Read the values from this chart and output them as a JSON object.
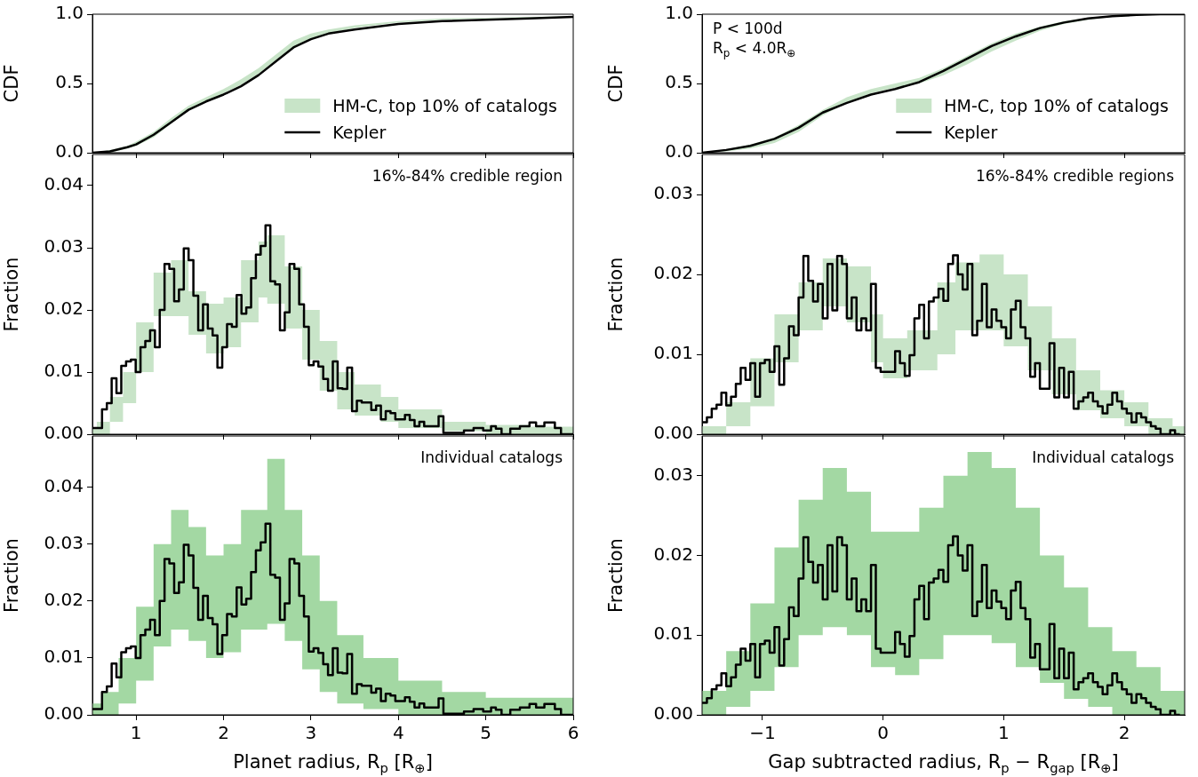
{
  "chart_data": [
    {
      "type": "line",
      "ylabel": "CDF",
      "xlim": [
        0.5,
        6
      ],
      "xticks": [
        {
          "value": 1,
          "label": null
        },
        {
          "value": 2,
          "label": null
        },
        {
          "value": 3,
          "label": null
        },
        {
          "value": 4,
          "label": null
        },
        {
          "value": 5,
          "label": null
        },
        {
          "value": 6,
          "label": null
        }
      ],
      "ylim": [
        0,
        1
      ],
      "yticks": [
        {
          "value": 0,
          "label": "0.0"
        },
        {
          "value": 0.5,
          "label": "0.5"
        },
        {
          "value": 1,
          "label": "1.0"
        }
      ],
      "tick_labels": "y",
      "legend": "bottom right",
      "series": [
        {
          "name": "HM-C, top 10% of catalogs",
          "type": "area",
          "color": "#c8e4c8",
          "x": [
            0.5,
            0.7,
            0.9,
            1.0,
            1.2,
            1.4,
            1.6,
            1.8,
            2.0,
            2.2,
            2.4,
            2.6,
            2.8,
            3.0,
            3.2,
            3.5,
            4.0,
            4.5,
            5.0,
            5.5,
            6.0
          ],
          "values": [
            null,
            null,
            null,
            null,
            null,
            null,
            null,
            null,
            null,
            null,
            null,
            null,
            null,
            null,
            null,
            null,
            null,
            null,
            null,
            null,
            null
          ],
          "lower": [
            0,
            0,
            0.03,
            0.05,
            0.11,
            0.21,
            0.31,
            0.37,
            0.43,
            0.49,
            0.57,
            0.67,
            0.76,
            0.82,
            0.86,
            0.9,
            0.94,
            0.96,
            0.97,
            0.975,
            0.98
          ],
          "upper": [
            0,
            0.02,
            0.05,
            0.08,
            0.15,
            0.25,
            0.34,
            0.4,
            0.46,
            0.53,
            0.61,
            0.71,
            0.81,
            0.86,
            0.89,
            0.92,
            0.95,
            0.97,
            0.975,
            0.98,
            0.985
          ]
        },
        {
          "name": "Kepler",
          "color": "#000000",
          "x": [
            0.5,
            0.7,
            0.9,
            1.0,
            1.2,
            1.4,
            1.6,
            1.8,
            2.0,
            2.2,
            2.4,
            2.6,
            2.8,
            3.0,
            3.2,
            3.5,
            4.0,
            4.5,
            5.0,
            5.5,
            6.0
          ],
          "values": [
            0,
            0.01,
            0.04,
            0.06,
            0.13,
            0.22,
            0.31,
            0.37,
            0.42,
            0.48,
            0.56,
            0.66,
            0.76,
            0.82,
            0.86,
            0.89,
            0.93,
            0.95,
            0.96,
            0.97,
            0.98
          ]
        }
      ]
    },
    {
      "type": "line",
      "ylabel": "CDF",
      "xlim": [
        -1.5,
        2.5
      ],
      "xticks": [
        {
          "value": -1,
          "label": null
        },
        {
          "value": 0,
          "label": null
        },
        {
          "value": 1,
          "label": null
        },
        {
          "value": 2,
          "label": null
        }
      ],
      "ylim": [
        0,
        1
      ],
      "yticks": [
        {
          "value": 0,
          "label": "0.0"
        },
        {
          "value": 0.5,
          "label": "0.5"
        },
        {
          "value": 1,
          "label": "1.0"
        }
      ],
      "tick_labels": "y",
      "legend": "bottom right",
      "annotations": [
        "P < 100d",
        "R$_{p}$ < 4.0R$_{⊕}$"
      ],
      "series": [
        {
          "name": "HM-C, top 10% of catalogs",
          "type": "area",
          "color": "#c8e4c8",
          "x": [
            -1.5,
            -1.3,
            -1.1,
            -0.9,
            -0.7,
            -0.5,
            -0.3,
            -0.1,
            0.1,
            0.3,
            0.5,
            0.7,
            0.9,
            1.1,
            1.3,
            1.5,
            1.7,
            1.9,
            2.1,
            2.3,
            2.5
          ],
          "values": [
            null,
            null,
            null,
            null,
            null,
            null,
            null,
            null,
            null,
            null,
            null,
            null,
            null,
            null,
            null,
            null,
            null,
            null,
            null,
            null,
            null
          ],
          "lower": [
            0,
            0.01,
            0.03,
            0.07,
            0.15,
            0.27,
            0.36,
            0.43,
            0.47,
            0.5,
            0.56,
            0.64,
            0.73,
            0.81,
            0.88,
            0.93,
            0.96,
            0.98,
            0.99,
            1,
            1
          ],
          "upper": [
            0.005,
            0.025,
            0.06,
            0.11,
            0.2,
            0.31,
            0.4,
            0.46,
            0.5,
            0.54,
            0.61,
            0.7,
            0.79,
            0.86,
            0.91,
            0.95,
            0.975,
            0.99,
            1,
            1,
            1
          ]
        },
        {
          "name": "Kepler",
          "color": "#000000",
          "x": [
            -1.5,
            -1.3,
            -1.1,
            -0.9,
            -0.7,
            -0.5,
            -0.3,
            -0.1,
            0.1,
            0.3,
            0.5,
            0.7,
            0.9,
            1.1,
            1.3,
            1.5,
            1.7,
            1.9,
            2.1,
            2.3,
            2.5
          ],
          "values": [
            0,
            0.02,
            0.05,
            0.1,
            0.18,
            0.29,
            0.36,
            0.42,
            0.46,
            0.51,
            0.59,
            0.68,
            0.77,
            0.84,
            0.9,
            0.94,
            0.97,
            0.985,
            0.995,
            1,
            1
          ]
        }
      ]
    },
    {
      "type": "step",
      "ylabel": "Fraction",
      "xlim": [
        0.5,
        6
      ],
      "xticks": [
        {
          "value": 1,
          "label": null
        },
        {
          "value": 2,
          "label": null
        },
        {
          "value": 3,
          "label": null
        },
        {
          "value": 4,
          "label": null
        },
        {
          "value": 5,
          "label": null
        },
        {
          "value": 6,
          "label": null
        }
      ],
      "ylim": [
        0,
        0.045
      ],
      "yticks": [
        {
          "value": 0,
          "label": "0.00"
        },
        {
          "value": 0.01,
          "label": "0.01"
        },
        {
          "value": 0.02,
          "label": "0.02"
        },
        {
          "value": 0.03,
          "label": "0.03"
        },
        {
          "value": 0.04,
          "label": "0.04"
        }
      ],
      "tick_labels": "y",
      "annotations": [
        "16%-84% credible region"
      ],
      "series": [
        {
          "color": "#c8e4c8",
          "x": [
            0.5,
            0.55,
            0.7,
            0.85,
            1.0,
            1.2,
            1.4,
            1.6,
            1.8,
            2.0,
            2.2,
            2.4,
            2.5,
            2.7,
            2.9,
            3.1,
            3.3,
            3.5,
            3.8,
            4.0,
            4.5,
            5.0,
            5.5,
            6.0
          ],
          "values": [
            null,
            null,
            null,
            null,
            null,
            null,
            null,
            null,
            null,
            null,
            null,
            null,
            null,
            null,
            null,
            null,
            null,
            null,
            null,
            null,
            null,
            null,
            null,
            null
          ],
          "lower": [
            0,
            0,
            0.002,
            0.005,
            0.01,
            0.019,
            0.019,
            0.016,
            0.013,
            0.014,
            0.018,
            0.022,
            0.021,
            0.017,
            0.012,
            0.007,
            0.004,
            0.003,
            0.002,
            0.001,
            0.0005,
            0,
            0,
            0
          ],
          "upper": [
            0.001,
            0.002,
            0.006,
            0.01,
            0.018,
            0.026,
            0.028,
            0.023,
            0.021,
            0.022,
            0.028,
            0.031,
            0.032,
            0.027,
            0.02,
            0.015,
            0.01,
            0.008,
            0.006,
            0.004,
            0.002,
            0.0015,
            0.0012,
            0.001
          ]
        },
        {
          "color": "#000000",
          "x": [
            0.5,
            0.61,
            0.665,
            0.72,
            0.775,
            0.83,
            0.885,
            0.94,
            0.995,
            1.05,
            1.105,
            1.16,
            1.215,
            1.27,
            1.325,
            1.38,
            1.435,
            1.49,
            1.545,
            1.6,
            1.655,
            1.71,
            1.765,
            1.82,
            1.875,
            1.93,
            1.985,
            2.04,
            2.095,
            2.15,
            2.205,
            2.26,
            2.315,
            2.37,
            2.425,
            2.48,
            2.535,
            2.59,
            2.645,
            2.7,
            2.755,
            2.81,
            2.865,
            2.92,
            2.975,
            3.03,
            3.085,
            3.14,
            3.195,
            3.25,
            3.305,
            3.36,
            3.415,
            3.47,
            3.525,
            3.58,
            3.69,
            3.745,
            3.8,
            3.855,
            3.91,
            3.965,
            4.075,
            4.13,
            4.185,
            4.24,
            4.295,
            4.35,
            4.46,
            4.515,
            4.75,
            4.86,
            4.97,
            5.06,
            5.115,
            5.18,
            5.28,
            5.335,
            5.39,
            5.5,
            5.575,
            5.67,
            5.79,
            5.86,
            6.0
          ],
          "values": [
            0.001,
            0.004,
            0.005,
            0.009,
            0.0066,
            0.011,
            0.0117,
            0.012,
            0.01,
            0.014,
            0.015,
            0.0167,
            0.014,
            0.02,
            0.0274,
            0.0266,
            0.0214,
            0.0233,
            0.0299,
            0.028,
            0.0223,
            0.0167,
            0.0209,
            0.017,
            0.0159,
            0.0107,
            0.014,
            0.0177,
            0.0173,
            0.0224,
            0.0194,
            0.0204,
            0.0251,
            0.0289,
            0.0303,
            0.0336,
            0.0246,
            0.0241,
            0.0167,
            0.0196,
            0.0274,
            0.0266,
            0.0209,
            0.0173,
            0.0111,
            0.0117,
            0.0109,
            0.0089,
            0.007,
            0.0117,
            0.0074,
            0.0073,
            0.0107,
            0.0037,
            0.0054,
            0.0051,
            0.0039,
            0.0046,
            0.0024,
            0.0037,
            0.0034,
            0.0024,
            0.0031,
            0.0023,
            0.0013,
            0.002,
            0.0013,
            0.0013,
            0.0029,
            0.0002,
            0.0006,
            0.001,
            0.0006,
            0.0013,
            0.0009,
            0,
            0.0009,
            0.0009,
            0.0013,
            0.0019,
            0.0013,
            0.0019,
            0.001,
            0,
            0
          ]
        }
      ]
    },
    {
      "type": "step",
      "ylabel": "Fraction",
      "xlim": [
        -1.5,
        2.5
      ],
      "xticks": [
        {
          "value": -1,
          "label": null
        },
        {
          "value": 0,
          "label": null
        },
        {
          "value": 1,
          "label": null
        },
        {
          "value": 2,
          "label": null
        }
      ],
      "ylim": [
        0,
        0.035
      ],
      "yticks": [
        {
          "value": 0,
          "label": "0.00"
        },
        {
          "value": 0.01,
          "label": "0.01"
        },
        {
          "value": 0.02,
          "label": "0.02"
        },
        {
          "value": 0.03,
          "label": "0.03"
        }
      ],
      "tick_labels": "y",
      "annotations": [
        "16%-84% credible regions"
      ],
      "series": [
        {
          "color": "#c8e4c8",
          "x": [
            -1.5,
            -1.3,
            -1.1,
            -0.9,
            -0.7,
            -0.5,
            -0.3,
            -0.1,
            0.0,
            0.2,
            0.45,
            0.6,
            0.8,
            1.0,
            1.2,
            1.4,
            1.6,
            1.8,
            2.0,
            2.2,
            2.4,
            2.5
          ],
          "values": [
            null,
            null,
            null,
            null,
            null,
            null,
            null,
            null,
            null,
            null,
            null,
            null,
            null,
            null,
            null,
            null,
            null,
            null,
            null,
            null,
            null,
            null
          ],
          "lower": [
            0,
            0.001,
            0.0035,
            0.009,
            0.013,
            0.016,
            0.014,
            0.009,
            0.007,
            0.008,
            0.01,
            0.013,
            0.013,
            0.011,
            0.008,
            0.005,
            0.003,
            0.002,
            0.001,
            0,
            0,
            0
          ],
          "upper": [
            0.001,
            0.004,
            0.0095,
            0.015,
            0.019,
            0.022,
            0.021,
            0.015,
            0.012,
            0.013,
            0.019,
            0.0215,
            0.0225,
            0.02,
            0.016,
            0.012,
            0.008,
            0.0055,
            0.004,
            0.002,
            0.001,
            0.0005
          ]
        },
        {
          "color": "#000000",
          "x": [
            -1.5,
            -1.46,
            -1.42,
            -1.38,
            -1.34,
            -1.3,
            -1.26,
            -1.22,
            -1.18,
            -1.14,
            -1.1,
            -1.06,
            -1.02,
            -0.98,
            -0.94,
            -0.9,
            -0.86,
            -0.82,
            -0.78,
            -0.74,
            -0.7,
            -0.66,
            -0.62,
            -0.58,
            -0.54,
            -0.5,
            -0.46,
            -0.42,
            -0.38,
            -0.34,
            -0.3,
            -0.26,
            -0.22,
            -0.18,
            -0.14,
            -0.1,
            -0.06,
            -0.02,
            0.1,
            0.14,
            0.18,
            0.22,
            0.26,
            0.3,
            0.34,
            0.38,
            0.42,
            0.46,
            0.5,
            0.54,
            0.58,
            0.62,
            0.66,
            0.7,
            0.74,
            0.78,
            0.82,
            0.86,
            0.9,
            0.94,
            0.98,
            1.02,
            1.06,
            1.1,
            1.14,
            1.18,
            1.22,
            1.26,
            1.3,
            1.38,
            1.42,
            1.46,
            1.5,
            1.54,
            1.58,
            1.62,
            1.66,
            1.7,
            1.74,
            1.78,
            1.82,
            1.86,
            1.9,
            1.94,
            1.98,
            2.02,
            2.06,
            2.1,
            2.14,
            2.18,
            2.22,
            2.26,
            2.3,
            2.38,
            2.42,
            2.46
          ],
          "values": [
            0.0015,
            0.0021,
            0.0032,
            0.0037,
            0.0052,
            0.0036,
            0.0047,
            0.0063,
            0.0083,
            0.0068,
            0.0089,
            0.0047,
            0.0089,
            0.0093,
            0.0078,
            0.011,
            0.0062,
            0.0095,
            0.0135,
            0.0124,
            0.0171,
            0.0223,
            0.0192,
            0.0166,
            0.0188,
            0.0145,
            0.0213,
            0.0155,
            0.0223,
            0.0213,
            0.0145,
            0.0171,
            0.013,
            0.0145,
            0.013,
            0.0188,
            0.0083,
            0.0078,
            0.0104,
            0.0089,
            0.0073,
            0.0099,
            0.0145,
            0.0162,
            0.012,
            0.0166,
            0.0171,
            0.0182,
            0.0167,
            0.0213,
            0.0224,
            0.02,
            0.0181,
            0.0213,
            0.0124,
            0.0142,
            0.0188,
            0.0134,
            0.0156,
            0.0142,
            0.0134,
            0.012,
            0.0156,
            0.0167,
            0.0134,
            0.012,
            0.0072,
            0.0089,
            0.0057,
            0.0114,
            0.0046,
            0.0083,
            0.0046,
            0.0078,
            0.0032,
            0.0041,
            0.0046,
            0.0052,
            0.0041,
            0.0035,
            0.0026,
            0.0037,
            0.0052,
            0.0041,
            0.0032,
            0.0026,
            0.0015,
            0.0026,
            0.0021,
            0.0015,
            0.001,
            0.0007,
            0,
            0.0005,
            0,
            0
          ]
        }
      ]
    },
    {
      "type": "step",
      "xlabel": "Planet radius, R$_{p}$ [R$_{⊕}$]",
      "ylabel": "Fraction",
      "xlim": [
        0.5,
        6
      ],
      "xticks": [
        1,
        2,
        3,
        4,
        5,
        6
      ],
      "ylim": [
        0,
        0.049
      ],
      "yticks": [
        {
          "value": 0,
          "label": "0.00"
        },
        {
          "value": 0.01,
          "label": "0.01"
        },
        {
          "value": 0.02,
          "label": "0.02"
        },
        {
          "value": 0.03,
          "label": "0.03"
        },
        {
          "value": 0.04,
          "label": "0.04"
        }
      ],
      "annotations": [
        "Individual catalogs"
      ],
      "series": [
        {
          "color": "#a3d8a3",
          "x": [
            0.5,
            0.6,
            0.8,
            1.0,
            1.2,
            1.4,
            1.6,
            1.8,
            2.0,
            2.2,
            2.5,
            2.7,
            2.9,
            3.1,
            3.3,
            3.6,
            4.0,
            4.5,
            5.0,
            5.5,
            6.0
          ],
          "values": [
            null,
            null,
            null,
            null,
            null,
            null,
            null,
            null,
            null,
            null,
            null,
            null,
            null,
            null,
            null,
            null,
            null,
            null,
            null,
            null,
            null
          ],
          "lower": [
            0,
            0,
            0.002,
            0.006,
            0.012,
            0.015,
            0.013,
            0.01,
            0.011,
            0.015,
            0.016,
            0.013,
            0.008,
            0.004,
            0.002,
            0.001,
            0,
            0,
            0,
            0,
            0
          ],
          "upper": [
            0.002,
            0.004,
            0.01,
            0.019,
            0.03,
            0.036,
            0.033,
            0.028,
            0.03,
            0.036,
            0.045,
            0.036,
            0.028,
            0.02,
            0.014,
            0.01,
            0.006,
            0.004,
            0.003,
            0.003,
            0.002
          ]
        },
        {
          "color": "#000000",
          "x": [
            0.5,
            0.61,
            0.665,
            0.72,
            0.775,
            0.83,
            0.885,
            0.94,
            0.995,
            1.05,
            1.105,
            1.16,
            1.215,
            1.27,
            1.325,
            1.38,
            1.435,
            1.49,
            1.545,
            1.6,
            1.655,
            1.71,
            1.765,
            1.82,
            1.875,
            1.93,
            1.985,
            2.04,
            2.095,
            2.15,
            2.205,
            2.26,
            2.315,
            2.37,
            2.425,
            2.48,
            2.535,
            2.59,
            2.645,
            2.7,
            2.755,
            2.81,
            2.865,
            2.92,
            2.975,
            3.03,
            3.085,
            3.14,
            3.195,
            3.25,
            3.305,
            3.36,
            3.415,
            3.47,
            3.525,
            3.58,
            3.69,
            3.745,
            3.8,
            3.855,
            3.91,
            3.965,
            4.075,
            4.13,
            4.185,
            4.24,
            4.295,
            4.35,
            4.46,
            4.515,
            4.75,
            4.86,
            4.97,
            5.06,
            5.115,
            5.18,
            5.28,
            5.335,
            5.39,
            5.5,
            5.575,
            5.67,
            5.79,
            5.86,
            6.0
          ],
          "values": [
            0.001,
            0.004,
            0.005,
            0.009,
            0.0066,
            0.011,
            0.0117,
            0.012,
            0.01,
            0.014,
            0.015,
            0.0167,
            0.014,
            0.02,
            0.0274,
            0.0266,
            0.0214,
            0.0233,
            0.0299,
            0.028,
            0.0223,
            0.0167,
            0.0209,
            0.017,
            0.0159,
            0.0107,
            0.014,
            0.0177,
            0.0173,
            0.0224,
            0.0194,
            0.0204,
            0.0251,
            0.0289,
            0.0303,
            0.0336,
            0.0246,
            0.0241,
            0.0167,
            0.0196,
            0.0274,
            0.0266,
            0.0209,
            0.0173,
            0.0111,
            0.0117,
            0.0109,
            0.0089,
            0.007,
            0.0117,
            0.0074,
            0.0073,
            0.0107,
            0.0037,
            0.0054,
            0.0051,
            0.0039,
            0.0046,
            0.0024,
            0.0037,
            0.0034,
            0.0024,
            0.0031,
            0.0023,
            0.0013,
            0.002,
            0.0013,
            0.0013,
            0.0029,
            0.0002,
            0.0006,
            0.001,
            0.0006,
            0.0013,
            0.0009,
            0,
            0.0009,
            0.0009,
            0.0013,
            0.0019,
            0.0013,
            0.0019,
            0.001,
            0,
            0
          ]
        }
      ]
    },
    {
      "type": "step",
      "xlabel": "Gap subtracted radius, R$_{p}$ − R$_{gap}$ [R$_{⊕}$]",
      "ylabel": "Fraction",
      "xlim": [
        -1.5,
        2.5
      ],
      "xticks": [
        {
          "value": -1,
          "label": "−1"
        },
        0,
        1,
        2
      ],
      "ylim": [
        0,
        0.035
      ],
      "yticks": [
        {
          "value": 0,
          "label": "0.00"
        },
        {
          "value": 0.01,
          "label": "0.01"
        },
        {
          "value": 0.02,
          "label": "0.02"
        },
        {
          "value": 0.03,
          "label": "0.03"
        }
      ],
      "annotations": [
        "Individual catalogs"
      ],
      "series": [
        {
          "color": "#a3d8a3",
          "x": [
            -1.5,
            -1.3,
            -1.1,
            -0.9,
            -0.7,
            -0.5,
            -0.3,
            -0.1,
            0.1,
            0.3,
            0.5,
            0.7,
            0.9,
            1.1,
            1.3,
            1.5,
            1.7,
            1.9,
            2.1,
            2.3,
            2.5
          ],
          "values": [
            null,
            null,
            null,
            null,
            null,
            null,
            null,
            null,
            null,
            null,
            null,
            null,
            null,
            null,
            null,
            null,
            null,
            null,
            null,
            null,
            null
          ],
          "lower": [
            0,
            0.001,
            0.003,
            0.006,
            0.01,
            0.011,
            0.01,
            0.006,
            0.005,
            0.007,
            0.01,
            0.01,
            0.009,
            0.006,
            0.004,
            0.002,
            0.001,
            0,
            0,
            0,
            0
          ],
          "upper": [
            0.003,
            0.008,
            0.014,
            0.021,
            0.027,
            0.031,
            0.028,
            0.023,
            0.023,
            0.026,
            0.03,
            0.033,
            0.031,
            0.026,
            0.02,
            0.016,
            0.011,
            0.008,
            0.006,
            0.003,
            0.001
          ]
        },
        {
          "color": "#000000",
          "x": [
            -1.5,
            -1.46,
            -1.42,
            -1.38,
            -1.34,
            -1.3,
            -1.26,
            -1.22,
            -1.18,
            -1.14,
            -1.1,
            -1.06,
            -1.02,
            -0.98,
            -0.94,
            -0.9,
            -0.86,
            -0.82,
            -0.78,
            -0.74,
            -0.7,
            -0.66,
            -0.62,
            -0.58,
            -0.54,
            -0.5,
            -0.46,
            -0.42,
            -0.38,
            -0.34,
            -0.3,
            -0.26,
            -0.22,
            -0.18,
            -0.14,
            -0.1,
            -0.06,
            -0.02,
            0.1,
            0.14,
            0.18,
            0.22,
            0.26,
            0.3,
            0.34,
            0.38,
            0.42,
            0.46,
            0.5,
            0.54,
            0.58,
            0.62,
            0.66,
            0.7,
            0.74,
            0.78,
            0.82,
            0.86,
            0.9,
            0.94,
            0.98,
            1.02,
            1.06,
            1.1,
            1.14,
            1.18,
            1.22,
            1.26,
            1.3,
            1.38,
            1.42,
            1.46,
            1.5,
            1.54,
            1.58,
            1.62,
            1.66,
            1.7,
            1.74,
            1.78,
            1.82,
            1.86,
            1.9,
            1.94,
            1.98,
            2.02,
            2.06,
            2.1,
            2.14,
            2.18,
            2.22,
            2.26,
            2.3,
            2.38,
            2.42,
            2.46
          ],
          "values": [
            0.0015,
            0.0021,
            0.0032,
            0.0037,
            0.0052,
            0.0036,
            0.0047,
            0.0063,
            0.0083,
            0.0068,
            0.0089,
            0.0047,
            0.0089,
            0.0093,
            0.0078,
            0.011,
            0.0062,
            0.0095,
            0.0135,
            0.0124,
            0.0171,
            0.0223,
            0.0192,
            0.0166,
            0.0188,
            0.0145,
            0.0213,
            0.0155,
            0.0223,
            0.0213,
            0.0145,
            0.0171,
            0.013,
            0.0145,
            0.013,
            0.0188,
            0.0083,
            0.0078,
            0.0104,
            0.0089,
            0.0073,
            0.0099,
            0.0145,
            0.0162,
            0.012,
            0.0166,
            0.0171,
            0.0182,
            0.0167,
            0.0213,
            0.0224,
            0.02,
            0.0181,
            0.0213,
            0.0124,
            0.0142,
            0.0188,
            0.0134,
            0.0156,
            0.0142,
            0.0134,
            0.012,
            0.0156,
            0.0167,
            0.0134,
            0.012,
            0.0072,
            0.0089,
            0.0057,
            0.0114,
            0.0046,
            0.0083,
            0.0046,
            0.0078,
            0.0032,
            0.0041,
            0.0046,
            0.0052,
            0.0041,
            0.0035,
            0.0026,
            0.0037,
            0.0052,
            0.0041,
            0.0032,
            0.0026,
            0.0015,
            0.0026,
            0.0021,
            0.0015,
            0.001,
            0.0007,
            0,
            0.0005,
            0,
            0
          ]
        }
      ]
    }
  ]
}
